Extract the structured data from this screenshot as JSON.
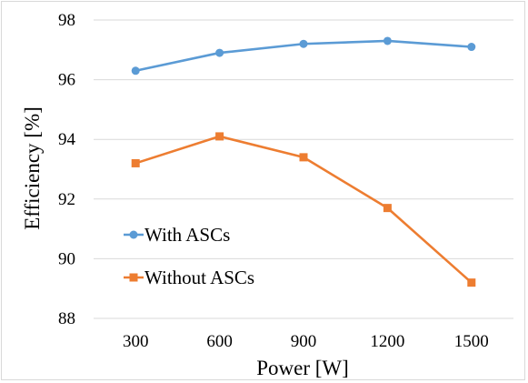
{
  "chart_data": {
    "type": "line",
    "x": [
      300,
      600,
      900,
      1200,
      1500
    ],
    "series": [
      {
        "name": "With ASCs",
        "color": "#5b9bd5",
        "marker": "circle",
        "values": [
          96.3,
          96.9,
          97.2,
          97.3,
          97.1
        ]
      },
      {
        "name": "Without ASCs",
        "color": "#ed7d31",
        "marker": "square",
        "values": [
          93.2,
          94.1,
          93.4,
          91.7,
          89.2
        ]
      }
    ],
    "x_tick_labels": [
      "300",
      "600",
      "900",
      "1200",
      "1500"
    ],
    "y_tick_labels": [
      "88",
      "90",
      "92",
      "94",
      "96",
      "98"
    ],
    "xlabel": "Power [W]",
    "ylabel": "Efficiency [%]",
    "ylim": [
      88,
      98
    ],
    "grid": true,
    "grid_color": "#d9d9d9",
    "legend_position": "lower-left inside plot"
  }
}
